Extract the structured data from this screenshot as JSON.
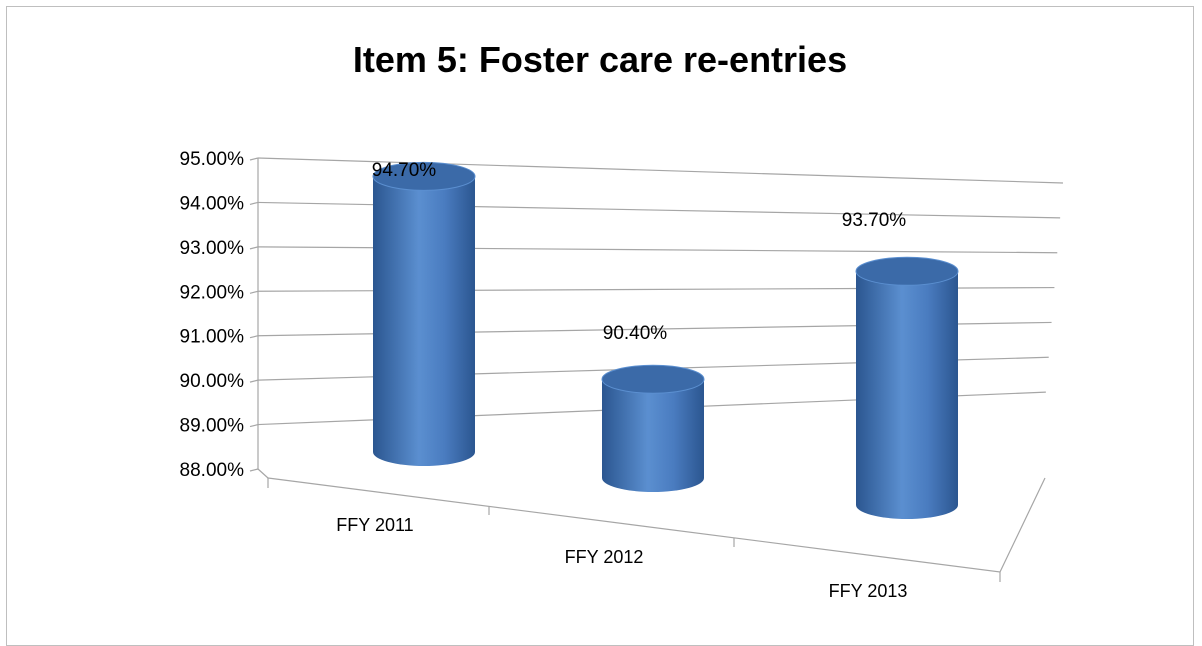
{
  "chart_data": {
    "type": "bar",
    "style": "3d-cylinder",
    "title": "Item 5: Foster care re-entries",
    "xlabel": "",
    "ylabel": "",
    "categories": [
      "FFY 2011",
      "FFY 2012",
      "FFY 2013"
    ],
    "values": [
      94.7,
      90.4,
      93.7
    ],
    "data_labels": [
      "94.70%",
      "90.40%",
      "93.70%"
    ],
    "ylim": [
      88,
      95
    ],
    "yticks": [
      88,
      89,
      90,
      91,
      92,
      93,
      94,
      95
    ],
    "ytick_labels": [
      "88.00%",
      "89.00%",
      "90.00%",
      "91.00%",
      "92.00%",
      "93.00%",
      "94.00%",
      "95.00%"
    ],
    "grid": true,
    "legend": "none",
    "colors": {
      "bar": "#4f81bd",
      "bar_dark": "#2b5690",
      "bar_top": "#3b6aa8",
      "grid": "#a6a6a6"
    }
  }
}
